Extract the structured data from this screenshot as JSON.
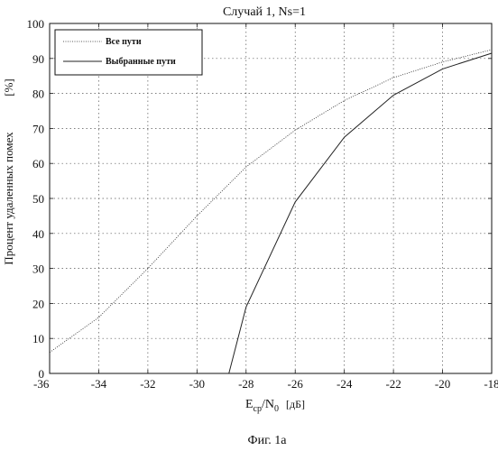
{
  "chart_data": {
    "type": "line",
    "title_main": "Случай 1",
    "title_rest": ", Ns=1",
    "xlabel_main": "E",
    "xlabel_sub1": "cp",
    "xlabel_mid": "/N",
    "xlabel_sub2": "0",
    "xlabel_unit": "[дБ]",
    "ylabel": "Процент удаленных помех",
    "ylabel_unit": "[%]",
    "xlim": [
      -36,
      -18
    ],
    "ylim": [
      0,
      100
    ],
    "xticks": [
      -36,
      -34,
      -32,
      -30,
      -28,
      -26,
      -24,
      -22,
      -20,
      -18
    ],
    "yticks": [
      0,
      10,
      20,
      30,
      40,
      50,
      60,
      70,
      80,
      90,
      100
    ],
    "grid": true,
    "legend_position": "top-left",
    "series": [
      {
        "name": "Все пути",
        "color": "#222222",
        "points": [
          [
            -36,
            6
          ],
          [
            -34,
            16
          ],
          [
            -32,
            30
          ],
          [
            -30,
            45
          ],
          [
            -28,
            59
          ],
          [
            -26,
            69.5
          ],
          [
            -24,
            78
          ],
          [
            -22,
            84.5
          ],
          [
            -20,
            89
          ],
          [
            -18,
            92.5
          ]
        ]
      },
      {
        "name": "Выбранные пути",
        "color": "#222222",
        "points": [
          [
            -28.7,
            0
          ],
          [
            -28,
            19
          ],
          [
            -26,
            49
          ],
          [
            -24,
            67.5
          ],
          [
            -22,
            79.5
          ],
          [
            -20,
            87
          ],
          [
            -18,
            91.5
          ]
        ]
      }
    ]
  },
  "caption": "Фиг. 1а"
}
